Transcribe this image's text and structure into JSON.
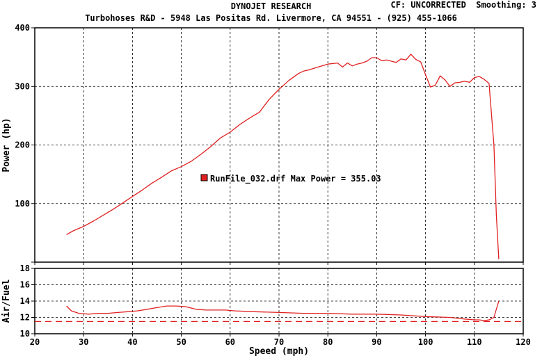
{
  "header": {
    "title": "DYNOJET RESEARCH",
    "subtitle": "Turbohoses R&D - 5948 Las Positas Rd. Livermore, CA 94551 - (925) 455-1066",
    "cf_label": "CF: UNCORRECTED",
    "smoothing_label": "Smoothing: 3"
  },
  "chart_data": [
    {
      "type": "line",
      "title": "",
      "xlabel": "",
      "ylabel": "Power (hp)",
      "xlim": [
        20,
        120
      ],
      "ylim": [
        0,
        400
      ],
      "x_ticks": [
        20,
        30,
        40,
        50,
        60,
        70,
        80,
        90,
        100,
        110,
        120
      ],
      "y_ticks": [
        0,
        100,
        200,
        300,
        400
      ],
      "y_tick_labels": [
        "100",
        "200",
        "300",
        "400"
      ],
      "grid": true,
      "color": "#e02020",
      "legend_text": "RunFile_032.drf Max Power = 355.03",
      "series": [
        {
          "x": [
            26.5,
            28,
            30,
            32,
            34,
            36,
            38,
            40,
            42,
            44,
            46,
            48,
            50,
            52,
            54,
            56,
            58,
            60,
            62,
            64,
            66,
            68,
            70,
            72,
            74,
            75,
            76,
            78,
            80,
            82,
            83,
            84,
            85,
            86,
            87,
            88,
            89,
            90,
            91,
            92,
            93,
            94,
            95,
            96,
            97,
            98,
            99,
            100,
            101,
            102,
            103,
            104,
            105,
            106,
            107,
            108,
            109,
            110,
            111,
            112,
            113,
            114,
            114.5,
            115
          ],
          "y": [
            47,
            54,
            61,
            70,
            80,
            90,
            101,
            112,
            123,
            135,
            145,
            156,
            163,
            172,
            184,
            197,
            212,
            222,
            235,
            246,
            256,
            278,
            295,
            310,
            322,
            326,
            328,
            333,
            338,
            340,
            333,
            340,
            335,
            338,
            340,
            343,
            349,
            349,
            344,
            345,
            343,
            341,
            347,
            345,
            355,
            346,
            342,
            320,
            299,
            302,
            318,
            311,
            300,
            306,
            307,
            309,
            307,
            315,
            317,
            312,
            305,
            200,
            80,
            5
          ]
        }
      ]
    },
    {
      "type": "line",
      "title": "",
      "xlabel": "Speed (mph)",
      "ylabel": "Air/Fuel",
      "xlim": [
        20,
        120
      ],
      "ylim": [
        10,
        18
      ],
      "x_ticks": [
        20,
        30,
        40,
        50,
        60,
        70,
        80,
        90,
        100,
        110,
        120
      ],
      "x_tick_labels": [
        "20",
        "30",
        "40",
        "50",
        "60",
        "70",
        "80",
        "90",
        "100",
        "110",
        "120"
      ],
      "y_ticks": [
        10,
        12,
        14,
        16,
        18
      ],
      "y_tick_labels": [
        "10",
        "12",
        "14",
        "16",
        "18"
      ],
      "grid": true,
      "color": "#e02020",
      "reference_line": 11.5,
      "series": [
        {
          "x": [
            26.5,
            27.5,
            29,
            31,
            33,
            35,
            37,
            39,
            41,
            43,
            45,
            47,
            49,
            51,
            53,
            55,
            57,
            59,
            61,
            65,
            70,
            75,
            80,
            85,
            90,
            95,
            100,
            105,
            108,
            110,
            111,
            112,
            113,
            114,
            115
          ],
          "y": [
            13.4,
            12.8,
            12.5,
            12.4,
            12.5,
            12.5,
            12.6,
            12.7,
            12.8,
            13.0,
            13.2,
            13.4,
            13.4,
            13.3,
            13.0,
            12.9,
            12.9,
            12.9,
            12.8,
            12.7,
            12.6,
            12.5,
            12.5,
            12.4,
            12.4,
            12.3,
            12.1,
            12.0,
            11.8,
            11.7,
            11.7,
            11.6,
            11.7,
            12.0,
            14.0
          ]
        }
      ]
    }
  ]
}
